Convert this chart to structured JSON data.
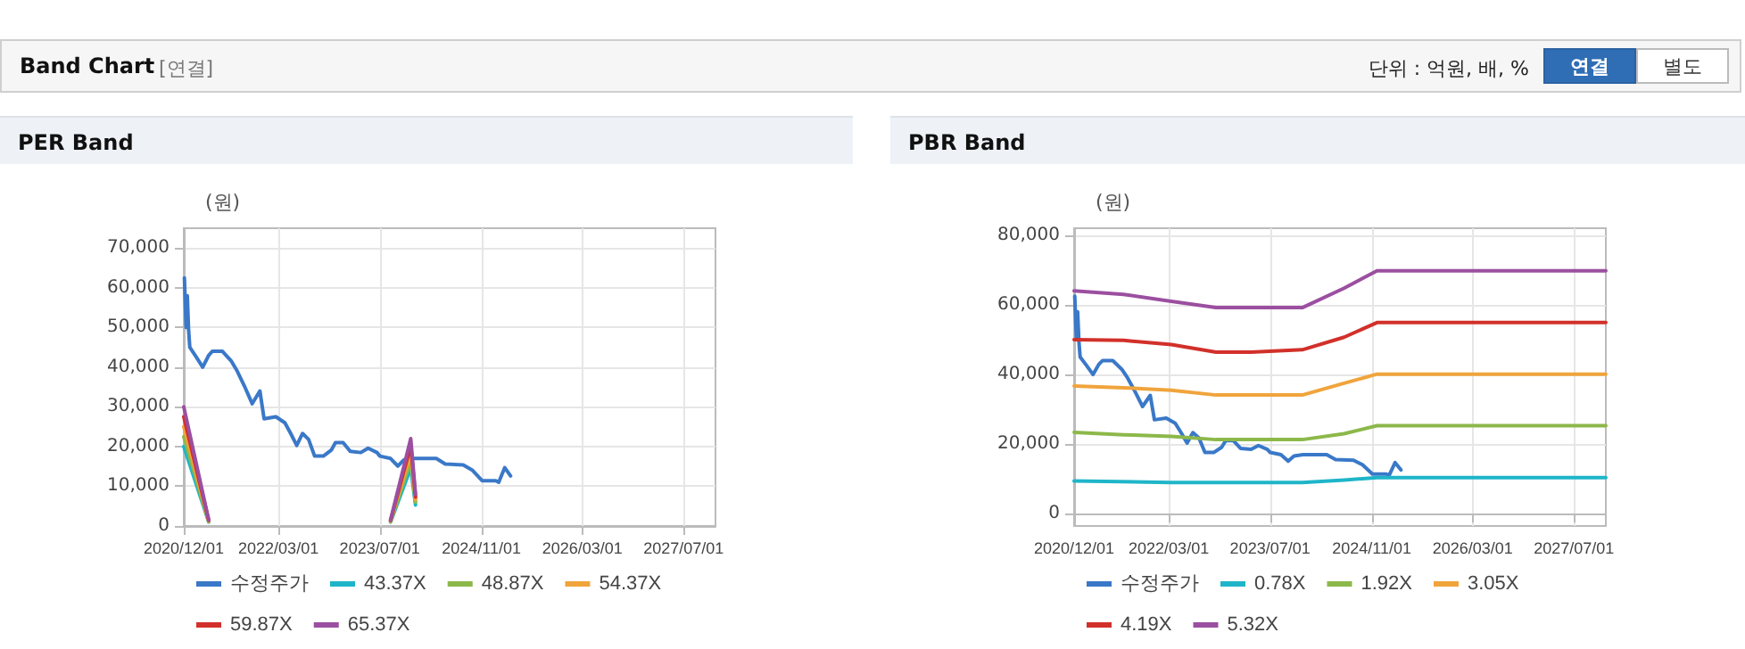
{
  "chart_data": [
    {
      "type": "other",
      "title": "Band Chart",
      "annotations": [
        "[연결]",
        "단위 : 억원, 배, %",
        "연결",
        "별도"
      ]
    },
    {
      "type": "line",
      "title": "PER Band",
      "ylabel": "(원)",
      "grid": true,
      "legend": "bottom",
      "marker": "none",
      "line_style": "solid",
      "xlim": [
        "2020-12-01",
        "2027-12-01"
      ],
      "xticks": [
        {
          "value": "2020-12-01",
          "label": "2020/12/01"
        },
        {
          "value": "2022-03-01",
          "label": "2022/03/01"
        },
        {
          "value": "2023-07-01",
          "label": "2023/07/01"
        },
        {
          "value": "2024-11-01",
          "label": "2024/11/01"
        },
        {
          "value": "2026-03-01",
          "label": "2026/03/01"
        },
        {
          "value": "2027-07-01",
          "label": "2027/07/01"
        }
      ],
      "ylim": [
        0,
        75000
      ],
      "yticks": [
        {
          "value": 0,
          "label": "0"
        },
        {
          "value": 10000,
          "label": "10,000"
        },
        {
          "value": 20000,
          "label": "20,000"
        },
        {
          "value": 30000,
          "label": "30,000"
        },
        {
          "value": 40000,
          "label": "40,000"
        },
        {
          "value": 50000,
          "label": "50,000"
        },
        {
          "value": 60000,
          "label": "60,000"
        },
        {
          "value": 70000,
          "label": "70,000"
        }
      ],
      "x": [
        "2020-12-04",
        "2020-12-12",
        "2020-12-18",
        "2020-12-24",
        "2020-12-30",
        "2021-01-27",
        "2021-03-02",
        "2021-03-31",
        "2021-04-17",
        "2021-06-05",
        "2021-07-18",
        "2021-08-15",
        "2021-09-18",
        "2021-10-26",
        "2021-12-02",
        "2021-12-22",
        "2022-02-17",
        "2022-04-01",
        "2022-04-29",
        "2022-05-28",
        "2022-06-25",
        "2022-07-24",
        "2022-08-22",
        "2022-10-03",
        "2022-11-10",
        "2022-11-30",
        "2023-01-06",
        "2023-02-09",
        "2023-04-01",
        "2023-05-06",
        "2023-06-18",
        "2023-07-02",
        "2023-08-22",
        "2023-09-26",
        "2023-10-24",
        "2023-12-06",
        "2024-03-29",
        "2024-05-11",
        "2024-08-05",
        "2024-09-17",
        "2024-11-04",
        "2025-01-09",
        "2025-01-23",
        "2025-02-21",
        "2025-03-21"
      ],
      "series": [
        {
          "name": "수정주가",
          "color": "#3a78c8",
          "values": [
            62500,
            50000,
            58000,
            49500,
            45000,
            42800,
            40000,
            43000,
            44000,
            44000,
            41500,
            39000,
            35300,
            30800,
            34000,
            27000,
            27500,
            26000,
            23300,
            20300,
            23300,
            21800,
            17600,
            17600,
            19100,
            21000,
            21000,
            18800,
            18500,
            19600,
            18500,
            17600,
            17000,
            15100,
            16600,
            17000,
            17000,
            15600,
            15400,
            14100,
            11400,
            11400,
            11000,
            14700,
            12600
          ]
        },
        {
          "name": "43.37X",
          "color": "#1fb5c9",
          "x": [
            "2020-12-01",
            "2021-03-31",
            "2021-04-01",
            "2023-08-22",
            "2023-11-27",
            "2023-12-20"
          ],
          "values": [
            20000,
            1000,
            null,
            1000,
            14600,
            5300
          ]
        },
        {
          "name": "48.87X",
          "color": "#8cb84a",
          "x": [
            "2020-12-01",
            "2021-03-31",
            "2021-04-01",
            "2023-08-22",
            "2023-11-27",
            "2023-12-20"
          ],
          "values": [
            22500,
            1100,
            null,
            1100,
            16500,
            6000
          ]
        },
        {
          "name": "54.37X",
          "color": "#f0a43c",
          "x": [
            "2020-12-01",
            "2021-03-31",
            "2021-04-01",
            "2023-08-22",
            "2023-11-27",
            "2023-12-20"
          ],
          "values": [
            25000,
            1300,
            null,
            1300,
            18300,
            6600
          ]
        },
        {
          "name": "59.87X",
          "color": "#d2302a",
          "x": [
            "2020-12-01",
            "2021-03-31",
            "2021-04-01",
            "2023-08-22",
            "2023-11-27",
            "2023-12-20"
          ],
          "values": [
            27500,
            1400,
            null,
            1400,
            20200,
            7300
          ]
        },
        {
          "name": "65.37X",
          "color": "#9b4fa0",
          "x": [
            "2020-12-01",
            "2021-03-31",
            "2021-04-01",
            "2023-08-22",
            "2023-11-27",
            "2023-12-20"
          ],
          "values": [
            30000,
            1500,
            null,
            1500,
            22000,
            8000
          ]
        }
      ]
    },
    {
      "type": "line",
      "title": "PBR Band",
      "ylabel": "(원)",
      "grid": true,
      "legend": "bottom",
      "marker": "none",
      "line_style": "solid",
      "xlim": [
        "2020-12-01",
        "2027-12-01"
      ],
      "xticks": [
        {
          "value": "2020-12-01",
          "label": "2020/12/01"
        },
        {
          "value": "2022-03-01",
          "label": "2022/03/01"
        },
        {
          "value": "2023-07-01",
          "label": "2023/07/01"
        },
        {
          "value": "2024-11-01",
          "label": "2024/11/01"
        },
        {
          "value": "2026-03-01",
          "label": "2026/03/01"
        },
        {
          "value": "2027-07-01",
          "label": "2027/07/01"
        }
      ],
      "ylim": [
        -3500,
        82000
      ],
      "yticks": [
        {
          "value": 0,
          "label": "0"
        },
        {
          "value": 20000,
          "label": "20,000"
        },
        {
          "value": 40000,
          "label": "40,000"
        },
        {
          "value": 60000,
          "label": "60,000"
        },
        {
          "value": 80000,
          "label": "80,000"
        }
      ],
      "x": [
        "2020-12-04",
        "2020-12-12",
        "2020-12-18",
        "2020-12-24",
        "2020-12-30",
        "2021-01-27",
        "2021-03-02",
        "2021-03-31",
        "2021-04-17",
        "2021-06-05",
        "2021-07-18",
        "2021-08-15",
        "2021-09-18",
        "2021-10-26",
        "2021-12-02",
        "2021-12-22",
        "2022-02-17",
        "2022-04-01",
        "2022-04-29",
        "2022-05-28",
        "2022-06-25",
        "2022-07-24",
        "2022-08-22",
        "2022-10-03",
        "2022-11-10",
        "2022-11-30",
        "2023-01-06",
        "2023-02-09",
        "2023-04-01",
        "2023-05-06",
        "2023-06-18",
        "2023-07-02",
        "2023-08-22",
        "2023-09-26",
        "2023-10-24",
        "2023-12-06",
        "2024-03-29",
        "2024-05-11",
        "2024-08-05",
        "2024-09-17",
        "2024-11-04",
        "2025-01-09",
        "2025-01-23",
        "2025-02-21",
        "2025-03-21"
      ],
      "series": [
        {
          "name": "수정주가",
          "color": "#3a78c8",
          "values": [
            62500,
            50000,
            58000,
            49500,
            45000,
            42800,
            40000,
            43000,
            44000,
            44000,
            41500,
            39000,
            35300,
            30800,
            34000,
            27000,
            27500,
            26000,
            23300,
            20300,
            23300,
            21800,
            17600,
            17600,
            19100,
            21000,
            21000,
            18800,
            18500,
            19600,
            18500,
            17600,
            17000,
            15100,
            16600,
            17000,
            17000,
            15600,
            15400,
            14100,
            11400,
            11400,
            11000,
            14700,
            12600
          ]
        },
        {
          "name": "0.78X",
          "color": "#1fb5c9",
          "x": [
            "2020-12-01",
            "2022-03-13",
            "2023-12-03",
            "2024-06-21",
            "2024-11-26",
            "2027-12-01"
          ],
          "values": [
            9400,
            9000,
            9000,
            9700,
            10400,
            10400
          ]
        },
        {
          "name": "1.92X",
          "color": "#8cb84a",
          "x": [
            "2020-12-01",
            "2021-07-27",
            "2022-03-13",
            "2022-10-14",
            "2023-12-03",
            "2024-06-21",
            "2024-11-26",
            "2027-12-01"
          ],
          "values": [
            23400,
            22700,
            22200,
            21300,
            21300,
            23000,
            25300,
            25300
          ]
        },
        {
          "name": "3.05X",
          "color": "#f0a43c",
          "x": [
            "2020-12-01",
            "2021-07-27",
            "2022-03-13",
            "2022-10-14",
            "2023-12-03",
            "2024-06-21",
            "2024-11-26",
            "2027-12-01"
          ],
          "values": [
            36700,
            36200,
            35500,
            34100,
            34100,
            37500,
            40100,
            40100
          ]
        },
        {
          "name": "4.19X",
          "color": "#d2302a",
          "x": [
            "2020-12-01",
            "2021-07-27",
            "2022-03-13",
            "2022-10-14",
            "2023-04-01",
            "2023-12-03",
            "2024-06-21",
            "2024-11-26",
            "2027-12-01"
          ],
          "values": [
            50000,
            49800,
            48600,
            46400,
            46400,
            47100,
            50700,
            54900,
            54900
          ]
        },
        {
          "name": "5.32X",
          "color": "#9b4fa0",
          "x": [
            "2020-12-01",
            "2021-07-27",
            "2022-03-13",
            "2022-10-14",
            "2023-12-03",
            "2024-06-21",
            "2024-11-26",
            "2027-12-01"
          ],
          "values": [
            64000,
            63000,
            61000,
            59200,
            59200,
            64800,
            69800,
            69800
          ]
        }
      ]
    }
  ]
}
